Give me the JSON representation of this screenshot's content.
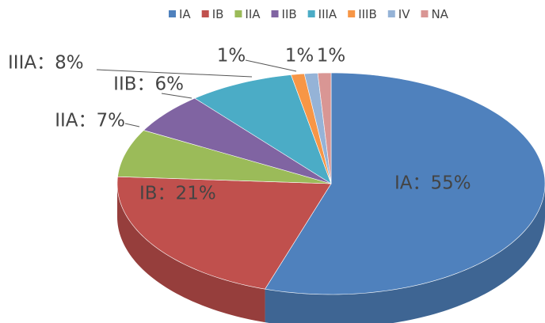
{
  "chart_data": {
    "type": "pie3d",
    "categories": [
      "IA",
      "IB",
      "IIA",
      "IIB",
      "IIIA",
      "IIIB",
      "IV",
      "NA"
    ],
    "values": [
      55,
      21,
      7,
      6,
      8,
      1,
      1,
      1
    ],
    "value_labels": [
      "IA：55%",
      "IB：21%",
      "IIA：7%",
      "IIB：6%",
      "IIIA：8%",
      "1%",
      "1%",
      "1%"
    ],
    "colors": [
      "#4f81bd",
      "#c0504d",
      "#9bbb59",
      "#8064a2",
      "#4bacc6",
      "#f79646",
      "#95b3d7",
      "#d99694"
    ],
    "legend": "top"
  }
}
